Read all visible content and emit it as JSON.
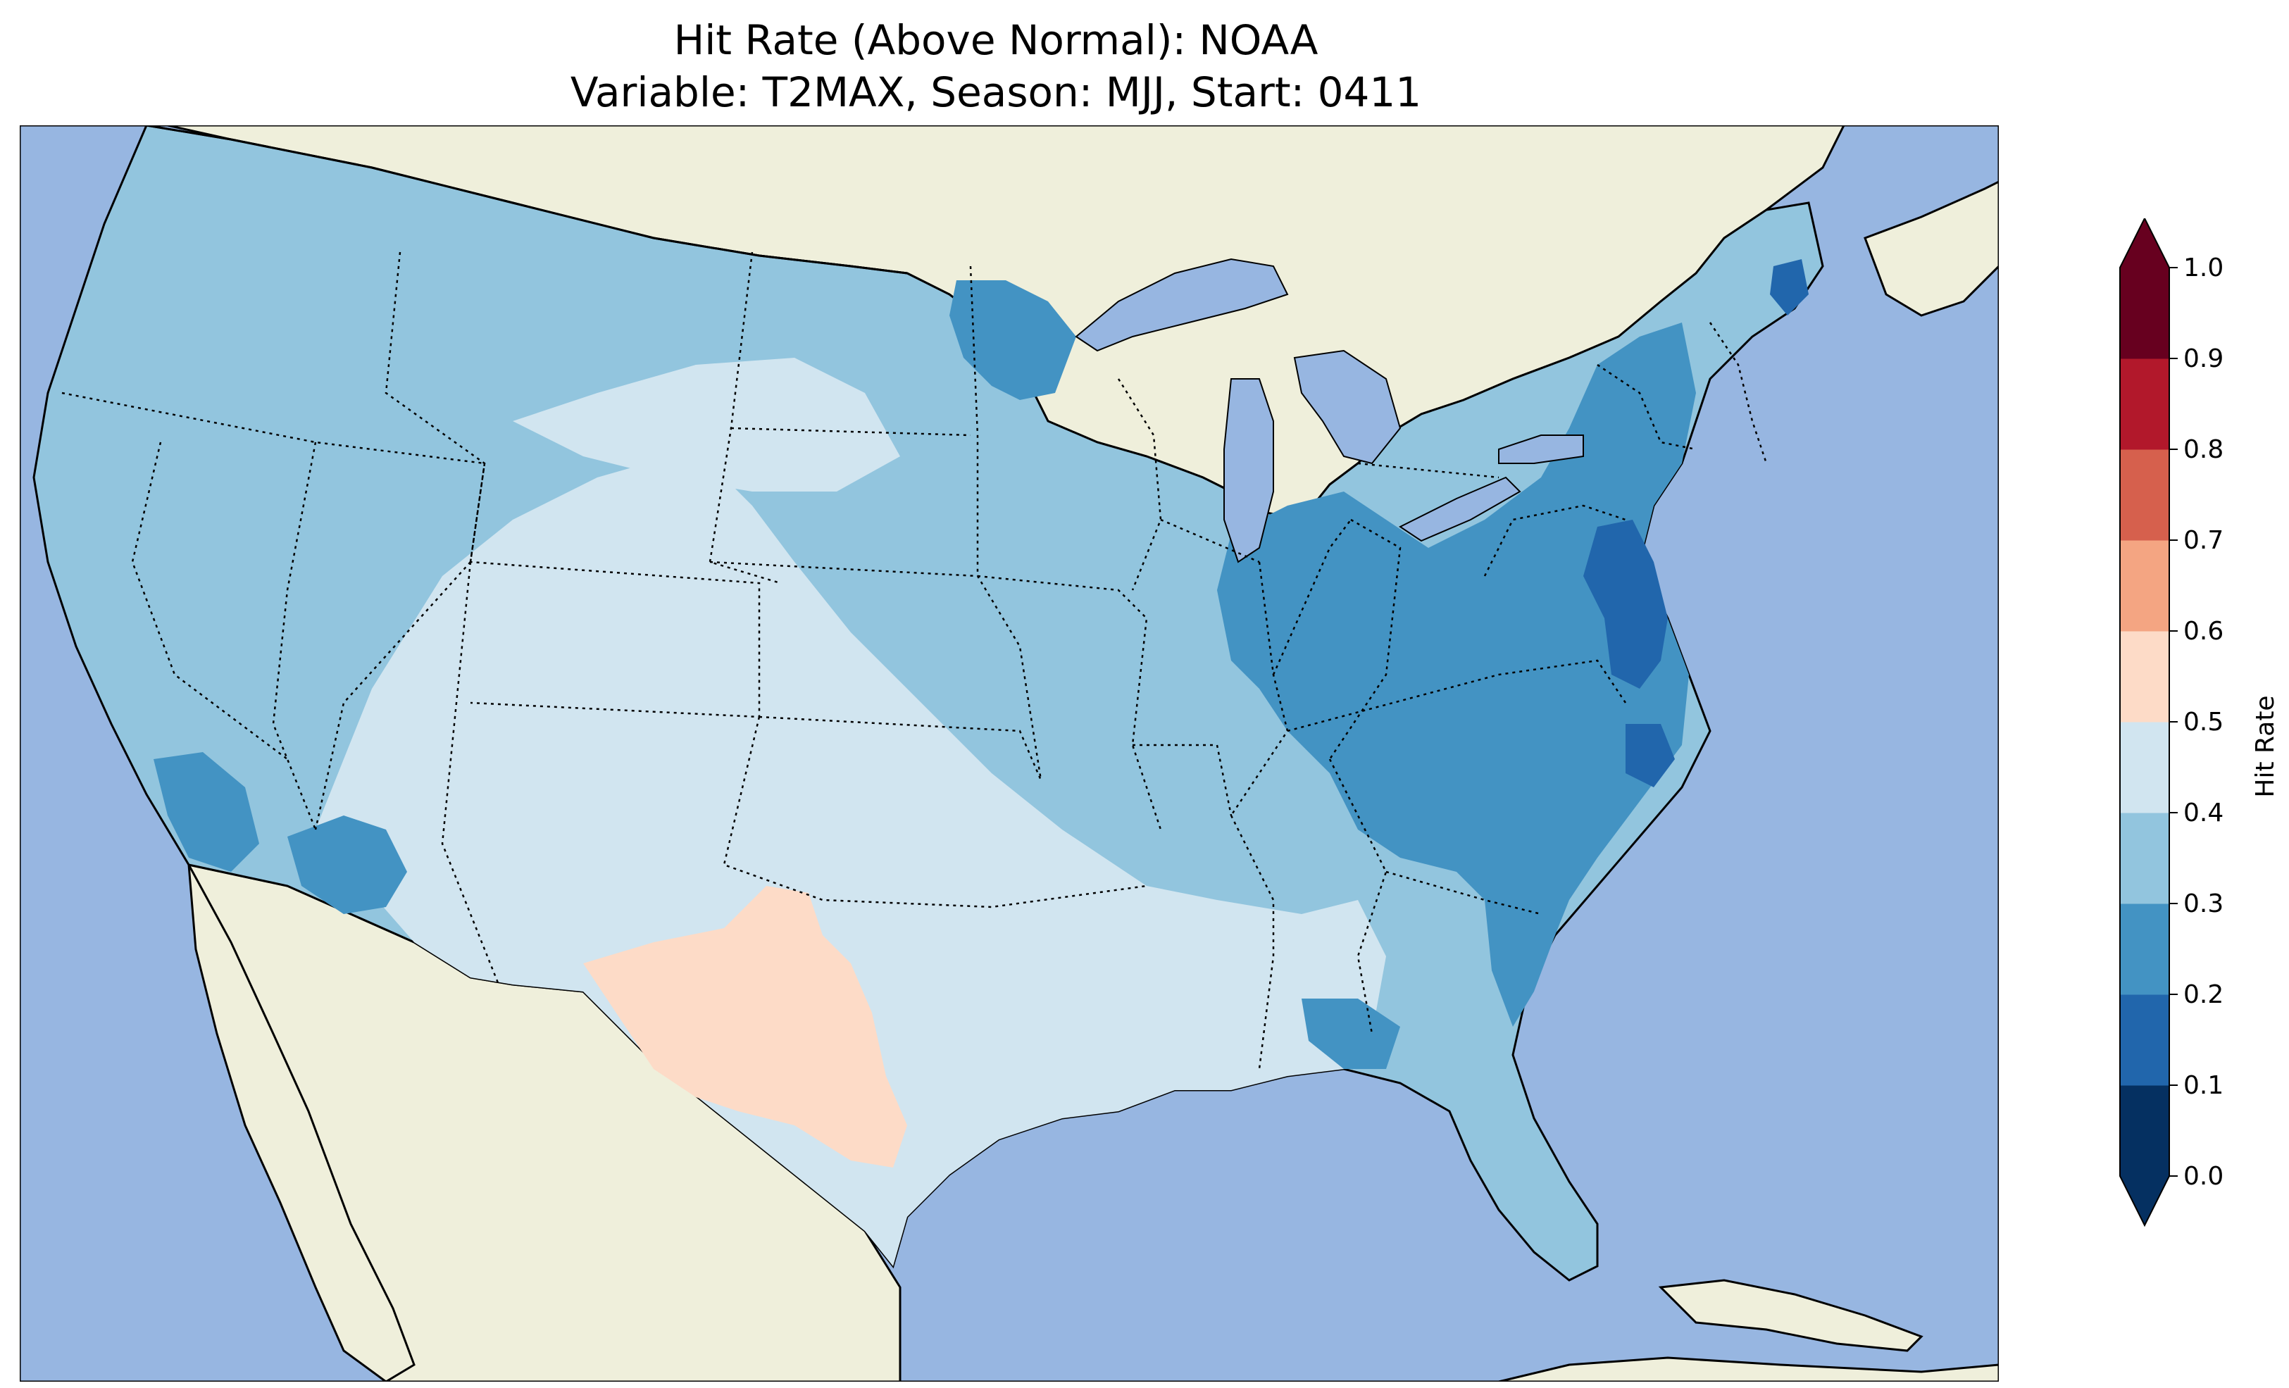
{
  "title": {
    "line1": "Hit Rate (Above Normal): NOAA",
    "line2": "Variable: T2MAX, Season: MJJ, Start: 0411"
  },
  "colorbar": {
    "label": "Hit Rate",
    "ticks": [
      "0.0",
      "0.1",
      "0.2",
      "0.3",
      "0.4",
      "0.5",
      "0.6",
      "0.7",
      "0.8",
      "0.9",
      "1.0"
    ],
    "bins": [
      {
        "range": [
          0.0,
          0.1
        ],
        "color": "#053061"
      },
      {
        "range": [
          0.1,
          0.2
        ],
        "color": "#2166ac"
      },
      {
        "range": [
          0.2,
          0.3
        ],
        "color": "#4393c3"
      },
      {
        "range": [
          0.3,
          0.4
        ],
        "color": "#92c5de"
      },
      {
        "range": [
          0.4,
          0.5
        ],
        "color": "#d1e5f0"
      },
      {
        "range": [
          0.5,
          0.6
        ],
        "color": "#fddbc7"
      },
      {
        "range": [
          0.6,
          0.7
        ],
        "color": "#f4a582"
      },
      {
        "range": [
          0.7,
          0.8
        ],
        "color": "#d6604d"
      },
      {
        "range": [
          0.8,
          0.9
        ],
        "color": "#b2182b"
      },
      {
        "range": [
          0.9,
          1.0
        ],
        "color": "#67001f"
      }
    ],
    "extend": "both"
  },
  "map_colors": {
    "ocean": "#97b6e1",
    "land": "#efefdb",
    "lakes": "#97b6e1"
  }
}
